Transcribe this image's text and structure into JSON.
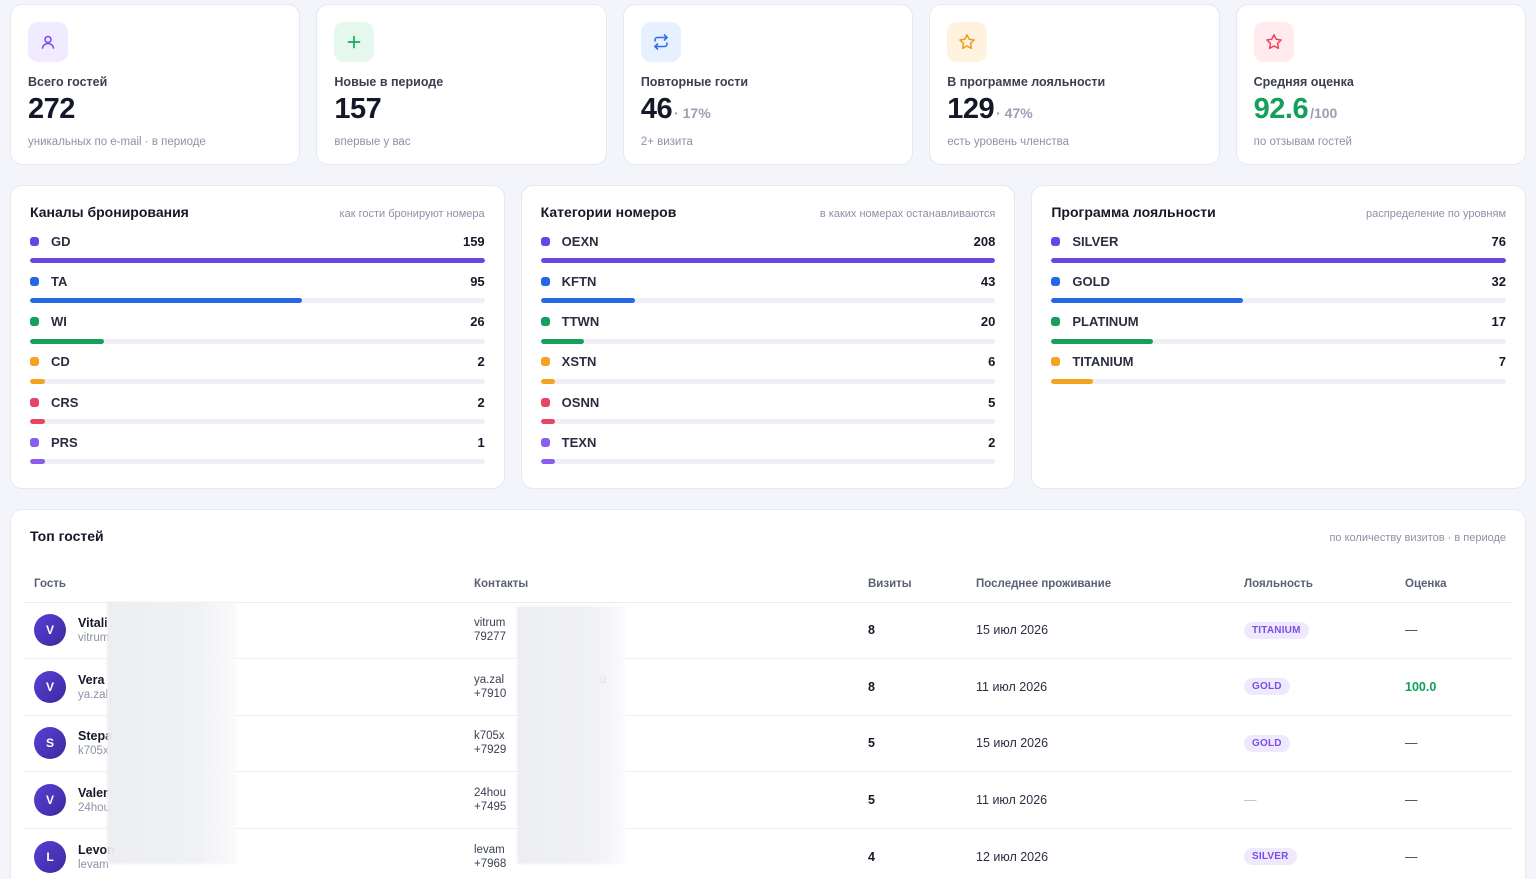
{
  "kpis": [
    {
      "label": "Всего гостей",
      "value": "272",
      "suffix": "",
      "sub": "уникальных по e-mail · в периоде",
      "icon": "user-icon",
      "icon_bg": "#f1ebff",
      "icon_color": "#7b4ee8"
    },
    {
      "label": "Новые в периоде",
      "value": "157",
      "suffix": "",
      "sub": "впервые у вас",
      "icon": "plus-icon",
      "icon_bg": "#e6f7ee",
      "icon_color": "#17a862"
    },
    {
      "label": "Повторные гости",
      "value": "46",
      "suffix": "· 17%",
      "sub": "2+ визита",
      "icon": "repeat-icon",
      "icon_bg": "#e7f0ff",
      "icon_color": "#2f6fe8"
    },
    {
      "label": "В программе лояльности",
      "value": "129",
      "suffix": "· 47%",
      "sub": "есть уровень членства",
      "icon": "star-icon",
      "icon_bg": "#fff3e0",
      "icon_color": "#f29a1f"
    },
    {
      "label": "Средняя оценка",
      "value": "92.6",
      "suffix": "/100",
      "sub": "по отзывам гостей",
      "icon": "star-outline-icon",
      "icon_bg": "#ffebee",
      "icon_color": "#e8445a"
    }
  ],
  "distributions": [
    {
      "title": "Каналы бронирования",
      "hint": "как гости бронируют номера",
      "items": [
        {
          "name": "GD",
          "count": "159",
          "value": 159,
          "color": "#6a45e6"
        },
        {
          "name": "TA",
          "count": "95",
          "value": 95,
          "color": "#2667e6"
        },
        {
          "name": "WI",
          "count": "26",
          "value": 26,
          "color": "#16a05c"
        },
        {
          "name": "CD",
          "count": "2",
          "value": 2,
          "color": "#f5a21e"
        },
        {
          "name": "CRS",
          "count": "2",
          "value": 2,
          "color": "#e84660"
        },
        {
          "name": "PRS",
          "count": "1",
          "value": 1,
          "color": "#8b5cf0"
        }
      ]
    },
    {
      "title": "Категории номеров",
      "hint": "в каких номерах останавливаются",
      "items": [
        {
          "name": "OEXN",
          "count": "208",
          "value": 208,
          "color": "#6a45e6"
        },
        {
          "name": "KFTN",
          "count": "43",
          "value": 43,
          "color": "#2667e6"
        },
        {
          "name": "TTWN",
          "count": "20",
          "value": 20,
          "color": "#16a05c"
        },
        {
          "name": "XSTN",
          "count": "6",
          "value": 6,
          "color": "#f5a21e"
        },
        {
          "name": "OSNN",
          "count": "5",
          "value": 5,
          "color": "#e84660"
        },
        {
          "name": "TEXN",
          "count": "2",
          "value": 2,
          "color": "#8b5cf0"
        }
      ]
    },
    {
      "title": "Программа лояльности",
      "hint": "распределение по уровням",
      "items": [
        {
          "name": "SILVER",
          "count": "76",
          "value": 76,
          "color": "#6a45e6"
        },
        {
          "name": "GOLD",
          "count": "32",
          "value": 32,
          "color": "#2667e6"
        },
        {
          "name": "PLATINUM",
          "count": "17",
          "value": 17,
          "color": "#16a05c"
        },
        {
          "name": "TITANIUM",
          "count": "7",
          "value": 7,
          "color": "#f5a21e"
        }
      ]
    }
  ],
  "top_guests": {
    "title": "Топ гостей",
    "hint": "по количеству визитов · в периоде",
    "columns": [
      "Гость",
      "Контакты",
      "Визиты",
      "Последнее проживание",
      "Лояльность",
      "Оценка"
    ],
    "rows": [
      {
        "initial": "V",
        "name": "Vitali",
        "sub": "vitrum",
        "contact1": "vitrum",
        "contact2": "79277",
        "visits": "8",
        "last_stay": "15 июл 2026",
        "loyalty": "TITANIUM",
        "score": "—"
      },
      {
        "initial": "V",
        "name": "Vera",
        "sub": "ya.zal",
        "contact1": "ya.zal                              u",
        "contact2": "+7910",
        "visits": "8",
        "last_stay": "11 июл 2026",
        "loyalty": "GOLD",
        "score": "100.0"
      },
      {
        "initial": "S",
        "name": "Stepa",
        "sub": "k705x",
        "contact1": "k705x",
        "contact2": "+7929",
        "visits": "5",
        "last_stay": "15 июл 2026",
        "loyalty": "GOLD",
        "score": "—"
      },
      {
        "initial": "V",
        "name": "Valer",
        "sub": "24hou",
        "contact1": "24hou",
        "contact2": "+7495",
        "visits": "5",
        "last_stay": "11 июл 2026",
        "loyalty": "—",
        "score": "—"
      },
      {
        "initial": "L",
        "name": "Levon",
        "sub": "levam",
        "contact1": "levam",
        "contact2": "+7968",
        "visits": "4",
        "last_stay": "12 июл 2026",
        "loyalty": "SILVER",
        "score": "—"
      }
    ]
  }
}
